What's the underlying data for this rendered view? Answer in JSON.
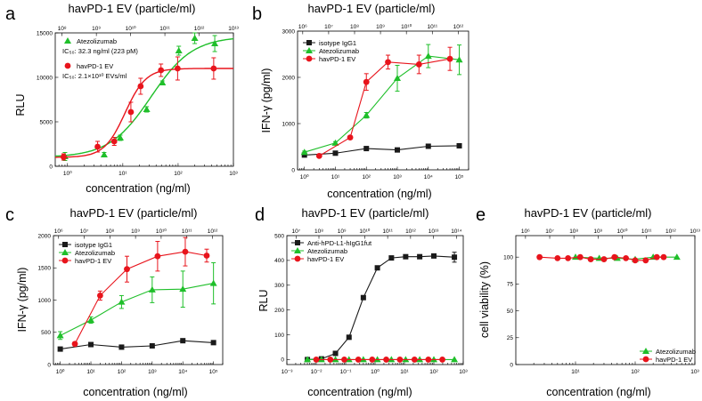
{
  "figure_panels": [
    {
      "id": "a",
      "letter": "a",
      "top_title": "havPD-1 EV (particle/ml)",
      "x_label": "concentration (ng/ml)",
      "y_label": "RLU"
    },
    {
      "id": "b",
      "letter": "b",
      "top_title": "havPD-1 EV (particle/ml)",
      "x_label": "concentration (ng/ml)",
      "y_label": "IFN-γ (pg/ml)"
    },
    {
      "id": "c",
      "letter": "c",
      "top_title": "havPD-1 EV (particle/ml)",
      "x_label": "concentration (ng/ml)",
      "y_label": "IFN-γ (pg/ml)"
    },
    {
      "id": "d",
      "letter": "d",
      "top_title": "havPD-1 EV (particle/ml)",
      "x_label": "concentration (ng/ml)",
      "y_label": "RLU"
    },
    {
      "id": "e",
      "letter": "e",
      "top_title": "havPD-1 EV (particle/ml)",
      "x_label": "concentration (ng/ml)",
      "y_label": "cell viability (%)"
    }
  ],
  "colors": {
    "black": "#1a1a1a",
    "green": "#1fbf2a",
    "red": "#e8141c"
  },
  "chart_data": [
    {
      "panel": "a",
      "type": "scatter",
      "title": "havPD-1 EV (particle/ml)",
      "xlabel": "concentration (ng/ml)",
      "ylabel": "RLU",
      "x_scale": "log",
      "xlim": [
        0.6,
        1000
      ],
      "ylim": [
        0,
        15000
      ],
      "x_ticks": [
        1,
        10,
        100,
        1000
      ],
      "y_ticks": [
        0,
        5000,
        10000,
        15000
      ],
      "top_x_ticks_exp": [
        8,
        9,
        10,
        11,
        12,
        13
      ],
      "top_xlim_exp": [
        7.8,
        13.0
      ],
      "series": [
        {
          "name": "Atezolizumab",
          "color": "green",
          "marker": "triangle",
          "x": [
            0.9,
            4.6,
            9,
            27,
            52,
            103,
            200,
            460
          ],
          "y": [
            1100,
            1300,
            3200,
            6400,
            9400,
            13000,
            14400,
            13800
          ],
          "err": [
            450,
            250,
            300,
            300,
            200,
            500,
            600,
            900
          ],
          "fit": {
            "bottom": 1000,
            "top": 14600,
            "ec50": 32.3,
            "hill": 1.15
          }
        },
        {
          "name": "havPD-1 EV",
          "color": "red",
          "marker": "circle",
          "x": [
            0.85,
            3.5,
            7,
            14,
            21,
            49,
            98,
            440
          ],
          "y": [
            1050,
            2200,
            2800,
            6100,
            9000,
            10800,
            11000,
            11000
          ],
          "err": [
            350,
            600,
            450,
            1100,
            900,
            700,
            1300,
            1200
          ],
          "fit": {
            "bottom": 1000,
            "top": 11000,
            "ec50": 11,
            "hill": 2.3
          }
        }
      ],
      "legend": {
        "entries": [
          {
            "name": "Atezolizumab",
            "sub": "IC₅₀: 32.3 ng/ml (223 pM)"
          },
          {
            "name": "havPD-1 EV",
            "sub": "IC₅₀: 2.1×10¹⁰ EVs/ml"
          }
        ],
        "placement": "top-left"
      }
    },
    {
      "panel": "b",
      "type": "line",
      "title": "havPD-1 EV (particle/ml)",
      "xlabel": "concentration (ng/ml)",
      "ylabel": "IFN-γ (pg/ml)",
      "x_scale": "log",
      "xlim": [
        0.6,
        200000
      ],
      "ylim": [
        0,
        3000
      ],
      "x_ticks": [
        1,
        10,
        100,
        1000,
        10000,
        100000
      ],
      "y_ticks": [
        0,
        1000,
        2000,
        3000
      ],
      "top_x_ticks_exp": [
        6,
        7,
        8,
        9,
        10,
        11,
        12
      ],
      "top_xlim_exp": [
        5.8,
        12.4
      ],
      "series": [
        {
          "name": "isotype IgG1",
          "color": "black",
          "marker": "square",
          "x": [
            1,
            10,
            100,
            1000,
            10000,
            100000
          ],
          "y": [
            320,
            360,
            460,
            430,
            510,
            520
          ],
          "err": [
            0,
            20,
            25,
            20,
            25,
            20
          ]
        },
        {
          "name": "Atezolizumab",
          "color": "green",
          "marker": "triangle",
          "x": [
            1,
            10,
            100,
            1000,
            10000,
            100000
          ],
          "y": [
            380,
            580,
            1180,
            1980,
            2460,
            2380
          ],
          "err": [
            25,
            30,
            60,
            280,
            250,
            320
          ]
        },
        {
          "name": "havPD-1 EV",
          "color": "red",
          "marker": "circle",
          "x": [
            3,
            30,
            100,
            500,
            5000,
            50000
          ],
          "y": [
            300,
            700,
            1900,
            2330,
            2280,
            2400
          ],
          "err": [
            20,
            40,
            180,
            150,
            200,
            250
          ]
        }
      ],
      "legend": {
        "entries": [
          {
            "name": "isotype IgG1"
          },
          {
            "name": "Atezolizumab"
          },
          {
            "name": "havPD-1 EV"
          }
        ],
        "placement": "top-left"
      }
    },
    {
      "panel": "c",
      "type": "line",
      "title": "havPD-1 EV (particle/ml)",
      "xlabel": "concentration (ng/ml)",
      "ylabel": "IFN-γ (pg/ml)",
      "x_scale": "log",
      "xlim": [
        0.6,
        200000
      ],
      "ylim": [
        0,
        2000
      ],
      "x_ticks": [
        1,
        10,
        100,
        1000,
        10000,
        100000
      ],
      "y_ticks": [
        0,
        500,
        1000,
        1500,
        2000
      ],
      "top_x_ticks_exp": [
        6,
        7,
        8,
        9,
        10,
        11,
        12
      ],
      "top_xlim_exp": [
        5.8,
        12.4
      ],
      "series": [
        {
          "name": "isotype IgG1",
          "color": "black",
          "marker": "square",
          "x": [
            1,
            10,
            100,
            1000,
            10000,
            100000
          ],
          "y": [
            240,
            310,
            270,
            290,
            370,
            340
          ],
          "err": [
            0,
            20,
            20,
            20,
            25,
            20
          ]
        },
        {
          "name": "Atezolizumab",
          "color": "green",
          "marker": "triangle",
          "x": [
            1,
            10,
            100,
            1000,
            10000,
            100000
          ],
          "y": [
            450,
            690,
            970,
            1160,
            1170,
            1260
          ],
          "err": [
            60,
            50,
            100,
            200,
            280,
            320
          ]
        },
        {
          "name": "havPD-1 EV",
          "color": "red",
          "marker": "circle",
          "x": [
            3,
            20,
            150,
            1500,
            12000,
            60000
          ],
          "y": [
            320,
            1070,
            1480,
            1680,
            1750,
            1690
          ],
          "err": [
            30,
            70,
            200,
            230,
            220,
            100
          ]
        }
      ],
      "legend": {
        "entries": [
          {
            "name": "isotype IgG1"
          },
          {
            "name": "Atezolizumab"
          },
          {
            "name": "havPD-1 EV"
          }
        ],
        "placement": "top-left"
      }
    },
    {
      "panel": "d",
      "type": "line",
      "title": "havPD-1 EV (particle/ml)",
      "xlabel": "concentration (ng/ml)",
      "ylabel": "RLU",
      "x_scale": "log",
      "xlim": [
        0.001,
        1000
      ],
      "ylim": [
        -20,
        500
      ],
      "x_ticks": [
        0.001,
        0.01,
        0.1,
        1,
        10,
        100,
        1000
      ],
      "y_ticks": [
        0,
        100,
        200,
        300,
        400,
        500
      ],
      "top_x_ticks_exp": [
        7,
        8,
        9,
        10,
        11,
        12,
        13,
        14
      ],
      "top_xlim_exp": [
        6.6,
        14.3
      ],
      "series": [
        {
          "name": "Anti-hPD-L1-hIgG1fut",
          "color": "black",
          "marker": "square",
          "x": [
            0.005,
            0.015,
            0.045,
            0.13,
            0.4,
            1.2,
            3.6,
            11,
            33,
            100,
            500
          ],
          "y": [
            0,
            3,
            25,
            90,
            250,
            370,
            410,
            415,
            415,
            418,
            413
          ],
          "err": [
            0,
            0,
            2,
            3,
            4,
            5,
            5,
            5,
            5,
            5,
            20
          ]
        },
        {
          "name": "Atezolizumab",
          "color": "green",
          "marker": "triangle",
          "x": [
            0.005,
            0.015,
            0.045,
            0.13,
            0.4,
            1.2,
            3.6,
            11,
            33,
            100,
            500
          ],
          "y": [
            0,
            0,
            0,
            0,
            0,
            0,
            0,
            0,
            0,
            0,
            0
          ],
          "err": [
            0,
            0,
            0,
            0,
            0,
            0,
            0,
            0,
            0,
            0,
            0
          ]
        },
        {
          "name": "havPD-1 EV",
          "color": "red",
          "marker": "circle",
          "x": [
            0.01,
            0.03,
            0.09,
            0.27,
            0.8,
            2.4,
            7,
            22,
            65,
            195
          ],
          "y": [
            0,
            0,
            0,
            0,
            0,
            0,
            0,
            0,
            0,
            0
          ],
          "err": [
            0,
            0,
            0,
            0,
            0,
            0,
            0,
            0,
            0,
            0
          ]
        }
      ],
      "legend": {
        "entries": [
          {
            "name": "Anti-hPD-L1-hIgG1fut"
          },
          {
            "name": "Atezolizumab"
          },
          {
            "name": "havPD-1 EV"
          }
        ],
        "placement": "top-left"
      }
    },
    {
      "panel": "e",
      "type": "line",
      "title": "havPD-1 EV (particle/ml)",
      "xlabel": "concentration (ng/ml)",
      "ylabel": "cell viability (%)",
      "x_scale": "log",
      "xlim": [
        1,
        1000
      ],
      "ylim": [
        0,
        120
      ],
      "x_ticks": [
        10,
        100,
        1000
      ],
      "y_ticks": [
        0,
        25,
        50,
        75,
        100
      ],
      "top_x_ticks_exp": [
        6,
        7,
        8,
        9,
        10,
        11,
        12,
        13
      ],
      "top_xlim_exp": [
        5.6,
        13.0
      ],
      "series": [
        {
          "name": "Atezolizumab",
          "color": "green",
          "marker": "triangle",
          "x": [
            10,
            25,
            50,
            100,
            200,
            500
          ],
          "y": [
            100,
            99,
            99,
            98,
            100,
            100
          ],
          "err": [
            0,
            0,
            0,
            0,
            0,
            0
          ]
        },
        {
          "name": "havPD-1 EV",
          "color": "red",
          "marker": "circle",
          "x": [
            2.5,
            5,
            7.5,
            12,
            18,
            30,
            45,
            70,
            100,
            150,
            230,
            300
          ],
          "y": [
            100,
            99,
            99,
            100,
            98,
            98,
            100,
            99,
            97,
            97,
            100,
            100
          ],
          "err": [
            0,
            0,
            0,
            0,
            0,
            0,
            0,
            0,
            0,
            0,
            0,
            0
          ]
        }
      ],
      "legend": {
        "entries": [
          {
            "name": "Atezolizumab"
          },
          {
            "name": "havPD-1 EV"
          }
        ],
        "placement": "bottom-right"
      }
    }
  ]
}
